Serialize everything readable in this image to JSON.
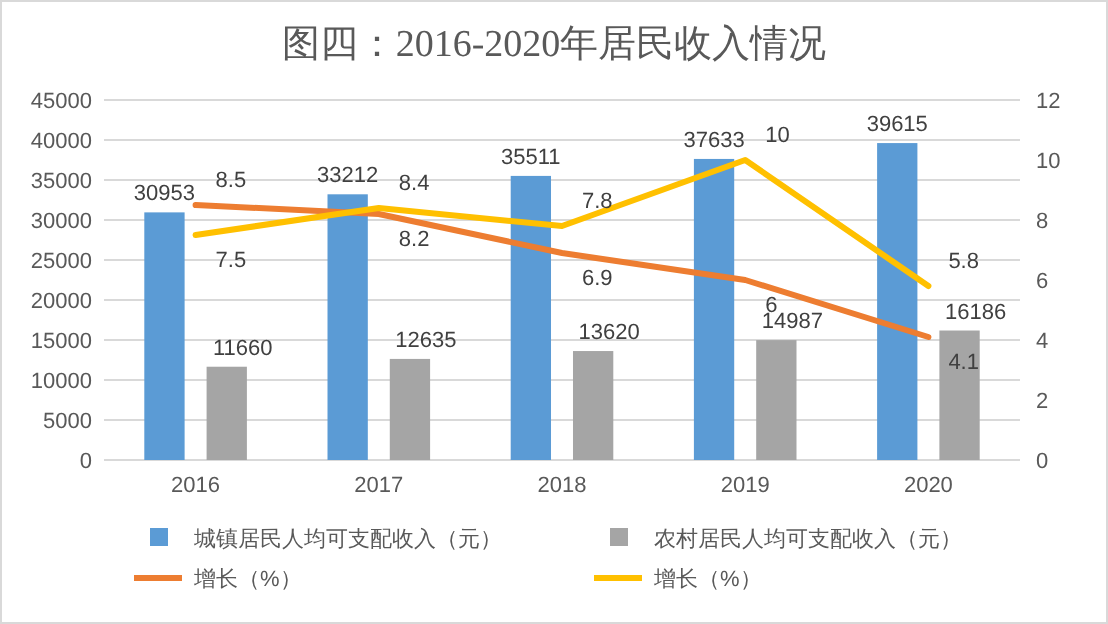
{
  "chart_data": {
    "type": "bar",
    "title": "图四：2016-2020年居民收入情况",
    "categories": [
      "2016",
      "2017",
      "2018",
      "2019",
      "2020"
    ],
    "series": [
      {
        "name": "城镇居民人均可支配收入（元）",
        "color": "#5b9bd5",
        "values": [
          30953,
          33212,
          35511,
          37633,
          39615
        ]
      },
      {
        "name": "农村居民人均可支配收入（元）",
        "color": "#a5a5a5",
        "values": [
          11660,
          12635,
          13620,
          14987,
          16186
        ]
      },
      {
        "name": "增长（%）",
        "type": "line",
        "axis": "y2",
        "color": "#ed7d31",
        "values": [
          8.5,
          8.2,
          6.9,
          6,
          4.1
        ]
      },
      {
        "name": "增长（%）",
        "type": "line",
        "axis": "y2",
        "color": "#ffc000",
        "values": [
          7.5,
          8.4,
          7.8,
          10,
          5.8
        ]
      }
    ],
    "ylim": [
      0,
      45000
    ],
    "yticks": [
      0,
      5000,
      10000,
      15000,
      20000,
      25000,
      30000,
      35000,
      40000,
      45000
    ],
    "y2lim": [
      0,
      12
    ],
    "y2ticks": [
      0,
      2,
      4,
      6,
      8,
      10,
      12
    ],
    "grid": "y",
    "legend": "bottom",
    "data_labels": true,
    "marker": "none"
  }
}
